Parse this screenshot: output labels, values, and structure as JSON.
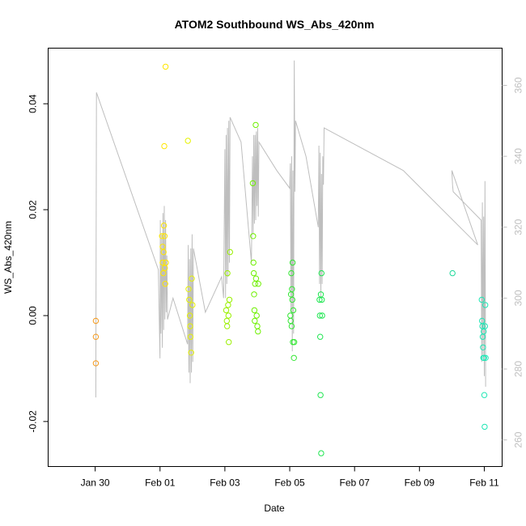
{
  "chart_data": {
    "type": "scatter",
    "title": "ATOM2 Southbound WS_Abs_420nm",
    "xlabel": "Date",
    "ylabel": "WS_Abs_420nm",
    "x_ticks": [
      "Jan 30",
      "Feb 01",
      "Feb 03",
      "Feb 05",
      "Feb 07",
      "Feb 09",
      "Feb 11"
    ],
    "y_ticks": [
      "-0.02",
      "0.00",
      "0.02",
      "0.04"
    ],
    "y2_ticks": [
      "260",
      "280",
      "300",
      "320",
      "340",
      "360"
    ],
    "xlim_days": [
      -1.45,
      12.55
    ],
    "ylim": [
      -0.0285,
      0.0505
    ],
    "y2lim": [
      252.5,
      370.5
    ],
    "colors": {
      "line": "#bebebe",
      "right_axis": "#bfbfbf",
      "axis": "#000000"
    },
    "points": [
      {
        "x": 0.02,
        "y": -0.001,
        "color": "#f59a1e"
      },
      {
        "x": 0.02,
        "y": -0.004,
        "color": "#f59a1e"
      },
      {
        "x": 0.02,
        "y": -0.009,
        "color": "#f59a1e"
      },
      {
        "x": 2.06,
        "y": 0.015,
        "color": "#ffe600"
      },
      {
        "x": 2.08,
        "y": 0.013,
        "color": "#ffe600"
      },
      {
        "x": 2.08,
        "y": 0.01,
        "color": "#ffe600"
      },
      {
        "x": 2.1,
        "y": 0.008,
        "color": "#ffe600"
      },
      {
        "x": 2.11,
        "y": 0.012,
        "color": "#ffe600"
      },
      {
        "x": 2.12,
        "y": 0.017,
        "color": "#ffe600"
      },
      {
        "x": 2.13,
        "y": 0.032,
        "color": "#ffe600"
      },
      {
        "x": 2.14,
        "y": 0.015,
        "color": "#ffe600"
      },
      {
        "x": 2.15,
        "y": 0.009,
        "color": "#ffe600"
      },
      {
        "x": 2.16,
        "y": 0.006,
        "color": "#ffe600"
      },
      {
        "x": 2.17,
        "y": 0.047,
        "color": "#ffe600"
      },
      {
        "x": 2.18,
        "y": 0.01,
        "color": "#ffe600"
      },
      {
        "x": 2.86,
        "y": 0.033,
        "color": "#e6f200"
      },
      {
        "x": 2.88,
        "y": 0.005,
        "color": "#e6f200"
      },
      {
        "x": 2.9,
        "y": 0.003,
        "color": "#e6f200"
      },
      {
        "x": 2.92,
        "y": 0.0,
        "color": "#e6f200"
      },
      {
        "x": 2.93,
        "y": -0.002,
        "color": "#e6f200"
      },
      {
        "x": 2.94,
        "y": -0.004,
        "color": "#e6f200"
      },
      {
        "x": 2.96,
        "y": -0.007,
        "color": "#e6f200"
      },
      {
        "x": 2.98,
        "y": 0.007,
        "color": "#e6f200"
      },
      {
        "x": 3.0,
        "y": 0.002,
        "color": "#e6f200"
      },
      {
        "x": 4.04,
        "y": 0.001,
        "color": "#9af000"
      },
      {
        "x": 4.06,
        "y": -0.001,
        "color": "#9af000"
      },
      {
        "x": 4.07,
        "y": -0.002,
        "color": "#9af000"
      },
      {
        "x": 4.08,
        "y": 0.008,
        "color": "#9af000"
      },
      {
        "x": 4.1,
        "y": 0.002,
        "color": "#9af000"
      },
      {
        "x": 4.11,
        "y": 0.0,
        "color": "#9af000"
      },
      {
        "x": 4.12,
        "y": -0.005,
        "color": "#9af000"
      },
      {
        "x": 4.14,
        "y": 0.003,
        "color": "#9af000"
      },
      {
        "x": 4.16,
        "y": 0.012,
        "color": "#9af000"
      },
      {
        "x": 4.86,
        "y": 0.025,
        "color": "#6ef000"
      },
      {
        "x": 4.87,
        "y": 0.015,
        "color": "#6ef000"
      },
      {
        "x": 4.88,
        "y": 0.01,
        "color": "#6ef000"
      },
      {
        "x": 4.89,
        "y": 0.008,
        "color": "#6ef000"
      },
      {
        "x": 4.9,
        "y": 0.004,
        "color": "#6ef000"
      },
      {
        "x": 4.91,
        "y": 0.001,
        "color": "#6ef000"
      },
      {
        "x": 4.92,
        "y": -0.001,
        "color": "#6ef000"
      },
      {
        "x": 4.93,
        "y": 0.006,
        "color": "#6ef000"
      },
      {
        "x": 4.95,
        "y": 0.036,
        "color": "#6ef000"
      },
      {
        "x": 4.96,
        "y": 0.007,
        "color": "#6ef000"
      },
      {
        "x": 4.98,
        "y": 0.0,
        "color": "#6ef000"
      },
      {
        "x": 5.0,
        "y": -0.002,
        "color": "#6ef000"
      },
      {
        "x": 5.02,
        "y": -0.003,
        "color": "#6ef000"
      },
      {
        "x": 5.03,
        "y": 0.006,
        "color": "#6ef000"
      },
      {
        "x": 6.02,
        "y": 0.0,
        "color": "#33e633"
      },
      {
        "x": 6.03,
        "y": -0.001,
        "color": "#33e633"
      },
      {
        "x": 6.04,
        "y": 0.004,
        "color": "#33e633"
      },
      {
        "x": 6.05,
        "y": 0.008,
        "color": "#33e633"
      },
      {
        "x": 6.06,
        "y": -0.002,
        "color": "#33e633"
      },
      {
        "x": 6.07,
        "y": 0.005,
        "color": "#33e633"
      },
      {
        "x": 6.08,
        "y": 0.003,
        "color": "#33e633"
      },
      {
        "x": 6.09,
        "y": 0.01,
        "color": "#33e633"
      },
      {
        "x": 6.1,
        "y": -0.005,
        "color": "#33e633"
      },
      {
        "x": 6.11,
        "y": 0.001,
        "color": "#33e633"
      },
      {
        "x": 6.13,
        "y": -0.008,
        "color": "#33e633"
      },
      {
        "x": 6.14,
        "y": -0.005,
        "color": "#33e633"
      },
      {
        "x": 6.92,
        "y": 0.003,
        "color": "#1ee650"
      },
      {
        "x": 6.93,
        "y": 0.0,
        "color": "#1ee650"
      },
      {
        "x": 6.94,
        "y": -0.004,
        "color": "#1ee650"
      },
      {
        "x": 6.95,
        "y": -0.015,
        "color": "#1ee650"
      },
      {
        "x": 6.96,
        "y": 0.004,
        "color": "#1ee650"
      },
      {
        "x": 6.97,
        "y": -0.026,
        "color": "#1ee650"
      },
      {
        "x": 6.98,
        "y": 0.008,
        "color": "#1ee650"
      },
      {
        "x": 6.99,
        "y": 0.003,
        "color": "#1ee650"
      },
      {
        "x": 7.0,
        "y": 0.0,
        "color": "#1ee650"
      },
      {
        "x": 11.02,
        "y": 0.008,
        "color": "#1ed99a"
      },
      {
        "x": 11.92,
        "y": 0.003,
        "color": "#1ee6b4"
      },
      {
        "x": 11.93,
        "y": -0.001,
        "color": "#1ee6b4"
      },
      {
        "x": 11.94,
        "y": -0.002,
        "color": "#1ee6b4"
      },
      {
        "x": 11.95,
        "y": -0.004,
        "color": "#1ee6b4"
      },
      {
        "x": 11.96,
        "y": -0.006,
        "color": "#1ee6b4"
      },
      {
        "x": 11.97,
        "y": -0.008,
        "color": "#1ee6b4"
      },
      {
        "x": 11.98,
        "y": -0.003,
        "color": "#1ee6b4"
      },
      {
        "x": 11.99,
        "y": -0.008,
        "color": "#1ee6b4"
      },
      {
        "x": 12.0,
        "y": -0.015,
        "color": "#1ee6b4"
      },
      {
        "x": 12.01,
        "y": -0.021,
        "color": "#1ee6b4"
      },
      {
        "x": 12.02,
        "y": -0.002,
        "color": "#1ee6b4"
      },
      {
        "x": 12.03,
        "y": 0.002,
        "color": "#1ee6b4"
      },
      {
        "x": 12.04,
        "y": -0.008,
        "color": "#1ee6b4"
      }
    ],
    "line": [
      [
        0.02,
        272
      ],
      [
        0.04,
        358
      ],
      [
        1.95,
        308
      ],
      [
        2.0,
        283
      ],
      [
        2.01,
        322
      ],
      [
        2.03,
        290
      ],
      [
        2.05,
        318
      ],
      [
        2.07,
        286
      ],
      [
        2.09,
        324
      ],
      [
        2.11,
        291
      ],
      [
        2.13,
        326
      ],
      [
        2.15,
        294
      ],
      [
        2.17,
        322
      ],
      [
        2.19,
        296
      ],
      [
        2.21,
        312
      ],
      [
        2.23,
        294
      ],
      [
        2.4,
        300
      ],
      [
        2.85,
        287
      ],
      [
        2.87,
        315
      ],
      [
        2.89,
        279
      ],
      [
        2.91,
        311
      ],
      [
        2.93,
        276
      ],
      [
        2.95,
        314
      ],
      [
        2.97,
        279
      ],
      [
        2.99,
        318
      ],
      [
        3.01,
        282
      ],
      [
        3.03,
        314
      ],
      [
        3.4,
        296
      ],
      [
        3.9,
        306
      ],
      [
        3.96,
        300
      ],
      [
        4.0,
        342
      ],
      [
        4.02,
        300
      ],
      [
        4.04,
        346
      ],
      [
        4.06,
        304
      ],
      [
        4.08,
        348
      ],
      [
        4.1,
        306
      ],
      [
        4.12,
        350
      ],
      [
        4.14,
        310
      ],
      [
        4.16,
        351
      ],
      [
        4.5,
        344
      ],
      [
        4.82,
        310
      ],
      [
        4.85,
        340
      ],
      [
        4.87,
        318
      ],
      [
        4.89,
        346
      ],
      [
        4.91,
        321
      ],
      [
        4.93,
        346
      ],
      [
        4.95,
        322
      ],
      [
        4.97,
        347
      ],
      [
        4.99,
        326
      ],
      [
        5.01,
        348
      ],
      [
        5.03,
        323
      ],
      [
        5.05,
        344
      ],
      [
        5.6,
        336
      ],
      [
        6.0,
        331
      ],
      [
        6.02,
        338
      ],
      [
        6.04,
        296
      ],
      [
        6.06,
        340
      ],
      [
        6.08,
        285
      ],
      [
        6.1,
        336
      ],
      [
        6.12,
        290
      ],
      [
        6.14,
        367
      ],
      [
        6.16,
        330
      ],
      [
        6.18,
        350
      ],
      [
        6.5,
        340
      ],
      [
        6.88,
        320
      ],
      [
        6.9,
        343
      ],
      [
        6.92,
        304
      ],
      [
        6.94,
        341
      ],
      [
        6.96,
        300
      ],
      [
        6.98,
        335
      ],
      [
        7.0,
        304
      ],
      [
        7.02,
        340
      ],
      [
        7.04,
        332
      ],
      [
        7.06,
        348
      ],
      [
        9.5,
        336
      ],
      [
        11.8,
        315
      ],
      [
        11.0,
        336
      ],
      [
        11.02,
        332
      ],
      [
        11.04,
        330
      ],
      [
        11.9,
        322
      ],
      [
        11.92,
        282
      ],
      [
        11.94,
        327
      ],
      [
        11.96,
        284
      ],
      [
        11.98,
        323
      ],
      [
        12.0,
        278
      ],
      [
        12.02,
        333
      ],
      [
        12.04,
        275
      ]
    ]
  }
}
